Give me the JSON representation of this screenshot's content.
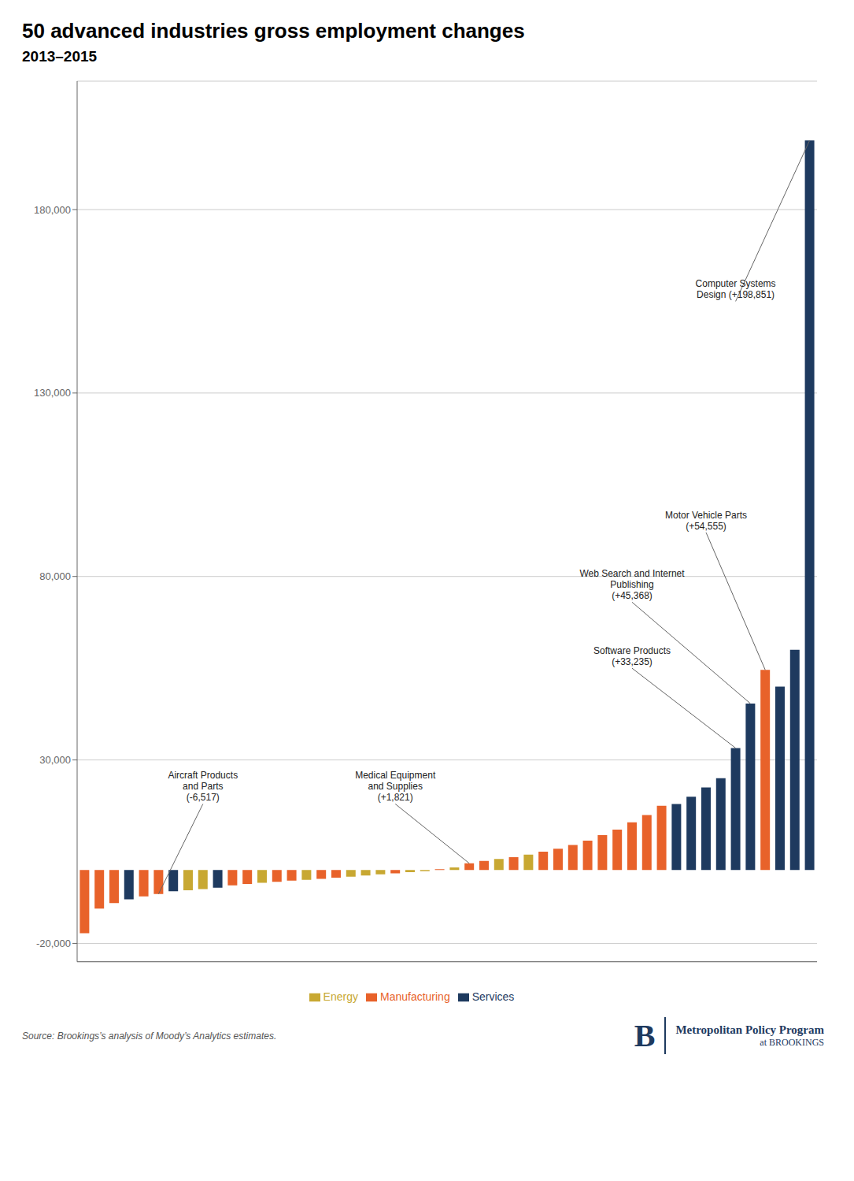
{
  "chart_data": {
    "type": "bar",
    "title": "50 advanced industries gross employment changes",
    "subtitle": "2013–2015",
    "source": "Source: Brookings’s analysis of Moody’s Analytics estimates.",
    "footer": [
      "B",
      "Metropolitan Policy Program",
      "at BROOKINGS"
    ],
    "categories": [
      null,
      null,
      null,
      null,
      null,
      null,
      null,
      null,
      null,
      null,
      null,
      null,
      null,
      null,
      null,
      null,
      null,
      null,
      null,
      null,
      null,
      null,
      null,
      null,
      null,
      null,
      null,
      null,
      null,
      null,
      null,
      null,
      null,
      null,
      null,
      null,
      null,
      null,
      null,
      null,
      null,
      null,
      null,
      null,
      null,
      null,
      null,
      null,
      null,
      null
    ],
    "series": [
      {
        "name": "Manufacturing",
        "color": "#e8622a",
        "values": [
          -17200,
          -10500,
          -9000,
          null,
          -7200,
          -6517,
          null,
          null,
          null,
          null,
          -4200,
          -3800,
          null,
          -3200,
          -2900,
          null,
          -2400,
          -2100,
          null,
          null,
          null,
          -900,
          null,
          null,
          200,
          null,
          1821,
          2500,
          null,
          3500,
          null,
          5000,
          5800,
          6800,
          8000,
          9500,
          11000,
          13000,
          15000,
          17500,
          null,
          null,
          null,
          null,
          null,
          null,
          54555,
          null,
          null,
          null
        ]
      },
      {
        "name": "Energy",
        "color": "#c8a832",
        "values": [
          null,
          null,
          null,
          null,
          null,
          null,
          null,
          -5500,
          -5200,
          null,
          null,
          null,
          -3500,
          null,
          null,
          -2700,
          null,
          null,
          -1800,
          -1500,
          -1200,
          null,
          -600,
          -300,
          null,
          700,
          null,
          null,
          3000,
          null,
          4200,
          null,
          null,
          null,
          null,
          null,
          null,
          null,
          null,
          null,
          null,
          null,
          null,
          null,
          null,
          null,
          null,
          null,
          null,
          null
        ]
      },
      {
        "name": "Services",
        "color": "#1e3a5f",
        "values": [
          null,
          null,
          null,
          -8000,
          null,
          null,
          -5800,
          null,
          null,
          -4800,
          null,
          null,
          null,
          null,
          null,
          null,
          null,
          null,
          null,
          null,
          null,
          null,
          null,
          null,
          null,
          null,
          null,
          null,
          null,
          null,
          null,
          null,
          null,
          null,
          null,
          null,
          null,
          null,
          null,
          null,
          18000,
          20000,
          22500,
          25000,
          33235,
          45368,
          null,
          50000,
          60000,
          198851
        ]
      }
    ],
    "stacked": true,
    "ylim": [
      -25000,
      215000
    ],
    "yticks": [
      {
        "value": -20000,
        "label": "-20,000"
      },
      {
        "value": 30000,
        "label": "30,000"
      },
      {
        "value": 80000,
        "label": "80,000"
      },
      {
        "value": 130000,
        "label": "130,000"
      },
      {
        "value": 180000,
        "label": "180,000"
      }
    ],
    "grid": true,
    "legend": "bottom",
    "tick_labels": "y",
    "annotations": [
      {
        "label": "Aircraft Products\nand Parts\n(-6,517)",
        "bar_index": 5,
        "label_x": 8,
        "label_y": 18000
      },
      {
        "label": "Medical Equipment\nand Supplies\n(+1,821)",
        "bar_index": 26,
        "label_x": 21,
        "label_y": 18000
      },
      {
        "label": "Software Products\n(+33,235)",
        "bar_index": 44,
        "label_x": 37,
        "label_y": 55000
      },
      {
        "label": "Web Search and Internet\nPublishing\n(+45,368)",
        "bar_index": 45,
        "label_x": 37,
        "label_y": 73000
      },
      {
        "label": "Motor Vehicle Parts\n(+54,555)",
        "bar_index": 46,
        "label_x": 42,
        "label_y": 92000
      },
      {
        "label": "Computer Systems\nDesign (+198,851)",
        "bar_index": 49,
        "label_x": 44,
        "label_y": 155000
      }
    ]
  }
}
